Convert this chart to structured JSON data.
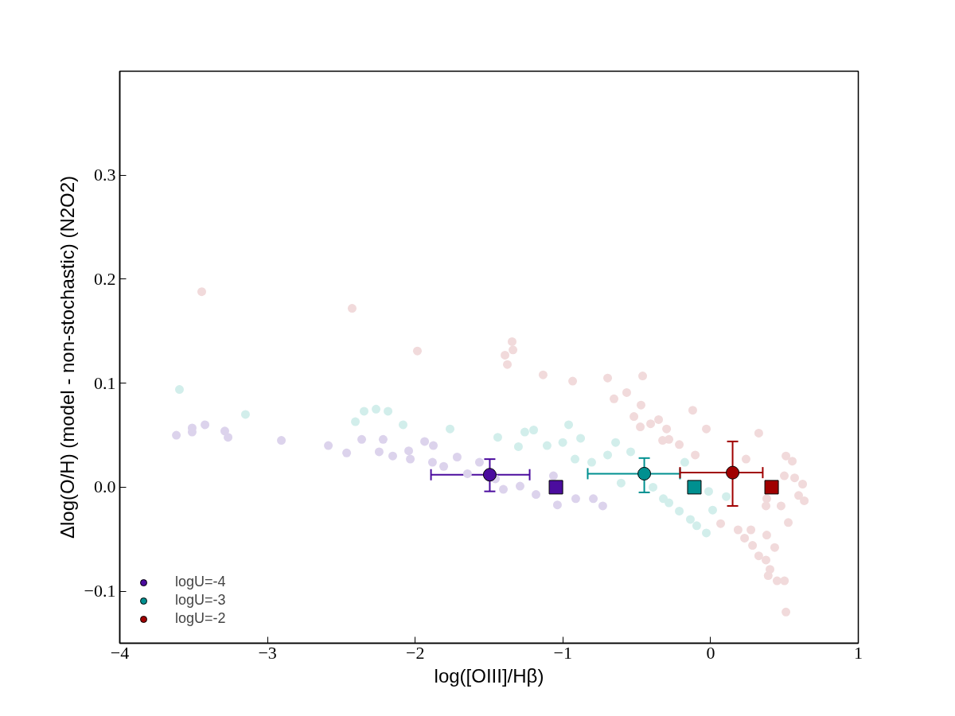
{
  "chart_data": {
    "type": "scatter",
    "xlabel": "log([OIII]/Hβ)",
    "ylabel": "Δlog(O/H) (model - non-stochastic) (N2O2)",
    "xlim": [
      -4,
      1
    ],
    "ylim": [
      -0.15,
      0.4
    ],
    "xticks": [
      {
        "value": -4,
        "label": "−4"
      },
      {
        "value": -3,
        "label": "−3"
      },
      {
        "value": -2,
        "label": "−2"
      },
      {
        "value": -1,
        "label": "−1"
      },
      0,
      1
    ],
    "yticks": [
      {
        "value": -0.1,
        "label": "−0.1"
      },
      {
        "value": 0,
        "label": "0.0"
      },
      0.1,
      0.2,
      0.3
    ],
    "grid": false,
    "legend": "bottom left",
    "marker": "circle",
    "series": [
      {
        "color": "#dcd3ec",
        "x": [
          -3.617,
          -3.51,
          -3.51,
          -3.423,
          -3.289,
          -3.267,
          -2.906,
          -2.588,
          -2.464,
          -2.362,
          -2.217,
          -2.244,
          -2.152,
          -2.044,
          -2.033,
          -1.936,
          -1.877,
          -1.883,
          -1.807,
          -1.716,
          -1.646,
          -1.565,
          -1.457,
          -1.403,
          -1.29,
          -1.182,
          -1.064,
          -1.037,
          -0.913,
          -0.794,
          -0.73
        ],
        "values": [
          0.05,
          0.057,
          0.053,
          0.06,
          0.054,
          0.048,
          0.045,
          0.04,
          0.033,
          0.046,
          0.046,
          0.034,
          0.03,
          0.035,
          0.027,
          0.044,
          0.04,
          0.024,
          0.02,
          0.029,
          0.013,
          0.024,
          0.008,
          -0.002,
          0.001,
          -0.007,
          0.011,
          -0.017,
          -0.011,
          -0.011,
          -0.018
        ]
      },
      {
        "color": "#d2eeeb",
        "x": [
          -3.596,
          -3.149,
          -2.405,
          -2.346,
          -2.265,
          -2.184,
          -2.082,
          -1.764,
          -1.441,
          -1.301,
          -1.258,
          -1.198,
          -1.107,
          -1.001,
          -0.961,
          -0.918,
          -0.88,
          -0.805,
          -0.697,
          -0.643,
          -0.541,
          -0.606,
          -0.39,
          -0.32,
          -0.282,
          -0.212,
          -0.137,
          -0.094,
          -0.029,
          -0.175,
          0.014,
          0.106,
          -0.013
        ],
        "values": [
          0.094,
          0.07,
          0.063,
          0.073,
          0.075,
          0.073,
          0.06,
          0.056,
          0.048,
          0.039,
          0.053,
          0.055,
          0.04,
          0.043,
          0.06,
          0.027,
          0.047,
          0.024,
          0.031,
          0.043,
          0.034,
          0.004,
          0.0,
          -0.011,
          -0.015,
          -0.023,
          -0.031,
          -0.037,
          -0.044,
          0.024,
          -0.022,
          -0.009,
          -0.004
        ]
      },
      {
        "color": "#f1dadb",
        "x": [
          -3.445,
          -2.427,
          -1.985,
          -1.344,
          -1.338,
          -1.392,
          -1.376,
          -1.134,
          -0.934,
          -0.697,
          -0.46,
          -0.654,
          -0.568,
          -0.471,
          -0.519,
          -0.476,
          -0.406,
          -0.352,
          -0.298,
          -0.325,
          -0.282,
          -0.212,
          -0.121,
          -0.029,
          -0.104,
          0.24,
          0.326,
          0.51,
          0.553,
          0.499,
          0.569,
          0.623,
          0.634,
          0.596,
          0.526,
          0.477,
          0.38,
          0.375,
          0.068,
          0.186,
          0.273,
          0.23,
          0.284,
          0.326,
          0.38,
          0.434,
          0.375,
          0.402,
          0.39,
          0.45,
          0.5,
          0.51
        ],
        "values": [
          0.188,
          0.172,
          0.131,
          0.14,
          0.132,
          0.127,
          0.118,
          0.108,
          0.102,
          0.105,
          0.107,
          0.085,
          0.091,
          0.079,
          0.068,
          0.058,
          0.061,
          0.065,
          0.056,
          0.045,
          0.046,
          0.041,
          0.074,
          0.056,
          0.031,
          0.027,
          0.052,
          0.03,
          0.025,
          0.011,
          0.009,
          0.003,
          -0.013,
          -0.008,
          -0.034,
          -0.018,
          -0.011,
          -0.018,
          -0.035,
          -0.041,
          -0.041,
          -0.049,
          -0.056,
          -0.066,
          -0.046,
          -0.058,
          -0.07,
          -0.079,
          -0.085,
          -0.09,
          -0.09,
          -0.12
        ]
      },
      {
        "name": "logU=-4",
        "color": "#4b0c9e",
        "x": [
          -1.495
        ],
        "values": [
          0.012
        ],
        "errors": [
          [
            -0.004,
            0.027
          ]
        ],
        "xerrors": [
          [
            -1.893,
            -1.225
          ]
        ]
      },
      {
        "name": "logU=-3",
        "color": "#009090",
        "x": [
          -0.449
        ],
        "values": [
          0.013
        ],
        "errors": [
          [
            -0.005,
            0.028
          ]
        ],
        "xerrors": [
          [
            -0.832,
            -0.207
          ]
        ]
      },
      {
        "name": "logU=-2",
        "color": "#a00000",
        "x": [
          0.149
        ],
        "values": [
          0.014
        ],
        "errors": [
          [
            -0.018,
            0.044
          ]
        ],
        "xerrors": [
          [
            -0.207,
            0.353
          ]
        ]
      },
      {
        "color": "#4b0c9e",
        "marker": "square",
        "x": [
          -1.047
        ],
        "values": [
          0
        ]
      },
      {
        "color": "#009090",
        "marker": "square",
        "x": [
          -0.11
        ],
        "values": [
          0
        ]
      },
      {
        "color": "#a00000",
        "marker": "square",
        "x": [
          0.413
        ],
        "values": [
          0
        ]
      }
    ]
  }
}
